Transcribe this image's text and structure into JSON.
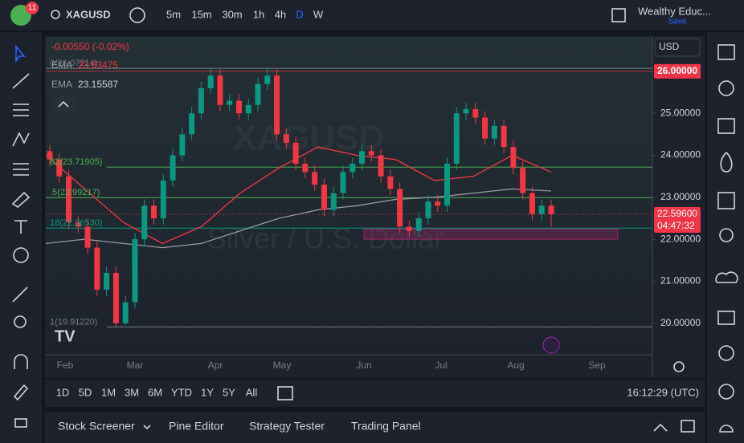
{
  "toolbar": {
    "badge": "11",
    "symbol": "XAGUSD",
    "intervals": [
      "5m",
      "15m",
      "30m",
      "1h",
      "4h",
      "D",
      "W"
    ],
    "account": "Wealthy Educ...",
    "save": "Save"
  },
  "chart_data": {
    "type": "candlestick",
    "currency": "USD",
    "change": "-0.00550 (-0.02%)",
    "watermark": [
      "XAGUSD",
      "Silver / U.S. Dollar"
    ],
    "up_color": "#089981",
    "down_color": "#f23645",
    "candles": [
      [
        24.1,
        24.25,
        23.75,
        23.9
      ],
      [
        23.9,
        24.05,
        23.35,
        23.5
      ],
      [
        23.5,
        23.65,
        22.25,
        22.4
      ],
      [
        22.4,
        22.55,
        22.15,
        22.3
      ],
      [
        22.3,
        22.45,
        21.65,
        21.8
      ],
      [
        21.8,
        21.95,
        20.65,
        20.8
      ],
      [
        20.8,
        21.35,
        20.65,
        21.2
      ],
      [
        21.2,
        21.35,
        19.91,
        20.0
      ],
      [
        20.0,
        20.65,
        19.95,
        20.5
      ],
      [
        20.5,
        22.15,
        20.35,
        22.0
      ],
      [
        22.0,
        22.95,
        21.85,
        22.8
      ],
      [
        22.8,
        22.95,
        22.35,
        22.5
      ],
      [
        22.5,
        23.55,
        22.35,
        23.4
      ],
      [
        23.4,
        24.15,
        23.25,
        24.0
      ],
      [
        24.0,
        24.65,
        23.85,
        24.5
      ],
      [
        24.5,
        25.15,
        24.35,
        25.0
      ],
      [
        25.0,
        25.75,
        24.85,
        25.6
      ],
      [
        25.6,
        26.07,
        25.45,
        25.9
      ],
      [
        25.9,
        26.05,
        25.05,
        25.2
      ],
      [
        25.2,
        25.45,
        25.05,
        25.3
      ],
      [
        25.3,
        25.45,
        24.85,
        25.0
      ],
      [
        25.0,
        25.35,
        24.85,
        25.2
      ],
      [
        25.2,
        25.85,
        25.05,
        25.7
      ],
      [
        25.7,
        26.07,
        25.55,
        25.9
      ],
      [
        25.9,
        26.05,
        24.35,
        24.5
      ],
      [
        24.5,
        24.65,
        24.15,
        24.3
      ],
      [
        24.3,
        24.45,
        23.65,
        23.8
      ],
      [
        23.8,
        23.95,
        23.45,
        23.6
      ],
      [
        23.6,
        23.75,
        23.15,
        23.3
      ],
      [
        23.3,
        23.45,
        22.55,
        22.7
      ],
      [
        22.7,
        23.25,
        22.55,
        23.1
      ],
      [
        23.1,
        23.75,
        22.95,
        23.6
      ],
      [
        23.6,
        23.95,
        23.45,
        23.8
      ],
      [
        23.8,
        24.25,
        23.65,
        24.1
      ],
      [
        24.1,
        24.25,
        23.85,
        24.0
      ],
      [
        24.0,
        24.15,
        23.35,
        23.5
      ],
      [
        23.5,
        23.65,
        23.05,
        23.2
      ],
      [
        23.2,
        23.35,
        22.15,
        22.3
      ],
      [
        22.3,
        22.45,
        22.05,
        22.2
      ],
      [
        22.2,
        22.65,
        22.05,
        22.5
      ],
      [
        22.5,
        23.05,
        22.35,
        22.9
      ],
      [
        22.9,
        23.05,
        22.65,
        22.8
      ],
      [
        22.8,
        23.95,
        22.65,
        23.8
      ],
      [
        23.8,
        25.15,
        23.65,
        25.0
      ],
      [
        25.0,
        25.25,
        24.85,
        25.1
      ],
      [
        25.1,
        25.25,
        24.75,
        24.9
      ],
      [
        24.9,
        25.05,
        24.25,
        24.4
      ],
      [
        24.4,
        24.85,
        24.25,
        24.7
      ],
      [
        24.7,
        24.85,
        24.05,
        24.2
      ],
      [
        24.2,
        24.35,
        23.55,
        23.7
      ],
      [
        23.7,
        23.85,
        22.95,
        23.1
      ],
      [
        23.1,
        23.25,
        22.45,
        22.6
      ],
      [
        22.6,
        22.95,
        22.45,
        22.8
      ],
      [
        22.8,
        22.95,
        22.3,
        22.596
      ]
    ],
    "indicators": [
      {
        "name": "EMA",
        "value": 23.63475,
        "color": "#f23645",
        "values": [
          24.0,
          23.2,
          22.4,
          21.9,
          22.3,
          23.1,
          23.7,
          24.2,
          24.0,
          23.9,
          23.4,
          23.5,
          24.0,
          23.6
        ]
      },
      {
        "name": "EMA",
        "value": 23.15587,
        "color": "#9598a1",
        "values": [
          21.9,
          22.0,
          21.9,
          21.8,
          21.9,
          22.2,
          22.5,
          22.7,
          22.8,
          22.95,
          23.0,
          23.1,
          23.2,
          23.15
        ]
      }
    ],
    "ylim": [
      19.25,
      26.82
    ],
    "yticks": [
      {
        "value": 20,
        "label": "20.00000"
      },
      {
        "value": 21,
        "label": "21.00000"
      },
      {
        "value": 22,
        "label": "22.00000"
      },
      {
        "value": 23,
        "label": "23.00000"
      },
      {
        "value": 24,
        "label": "24.00000"
      },
      {
        "value": 25,
        "label": "25.00000"
      },
      {
        "value": 26,
        "label": "26.00000"
      }
    ],
    "xticks": [
      "Feb",
      "Mar",
      "Apr",
      "May",
      "Jun",
      "Jul",
      "Aug",
      "Sep"
    ],
    "fib": [
      {
        "label": "0(26.07214)",
        "value": 26.07214,
        "color": "#787b86"
      },
      {
        "label": "82(23.71905)",
        "value": 23.71905,
        "color": "#4caf50"
      },
      {
        "label": ".5(22.99217)",
        "value": 22.99217,
        "color": "#4caf50"
      },
      {
        "label": "18(22.26530)",
        "value": 22.2653,
        "color": "#089981"
      },
      {
        "label": "1(19.91220)",
        "value": 19.9122,
        "color": "#787b86"
      }
    ],
    "zone": {
      "top": 22.25,
      "bottom": 22.0,
      "color": "#9c2765"
    },
    "hline": {
      "value": 26,
      "label": "26.00000",
      "color": "#f23645"
    },
    "last_price": {
      "value": 22.596,
      "label": "22.59600",
      "timer": "04:47:32",
      "color": "#f23645"
    }
  },
  "range_bar": {
    "ranges": [
      "1D",
      "5D",
      "1M",
      "3M",
      "6M",
      "YTD",
      "1Y",
      "5Y",
      "All"
    ],
    "clock": "16:12:29 (UTC)"
  },
  "bottom_panel": {
    "tabs": [
      "Stock Screener",
      "Pine Editor",
      "Strategy Tester",
      "Trading Panel"
    ]
  }
}
